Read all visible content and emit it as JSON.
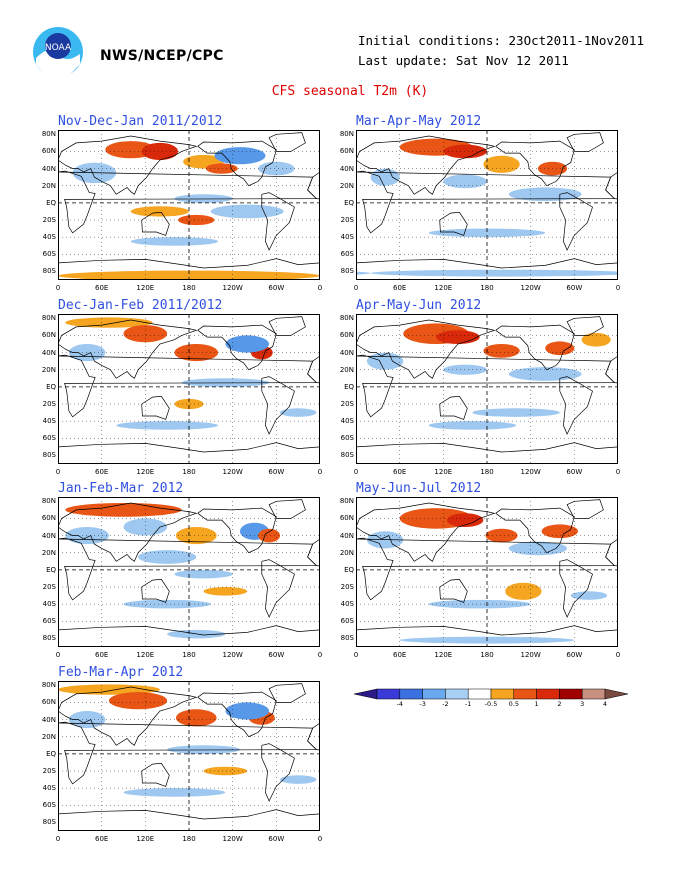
{
  "header": {
    "org": "NWS/NCEP/CPC",
    "initial_conditions": "Initial conditions: 23Oct2011-1Nov2011",
    "last_update": "Last update: Sat Nov 12 2011",
    "plot_title": "CFS seasonal T2m (K)",
    "logo_label": "NOAA"
  },
  "colors": {
    "title_red": "#e00000",
    "season_blue": "#3050e0",
    "orange": "#f5a520",
    "red_orange": "#e85515",
    "red": "#d82a0a",
    "light_blue": "#9ec8f0",
    "blue": "#5898e8"
  },
  "lat_labels": [
    "80N",
    "60N",
    "40N",
    "20N",
    "EQ",
    "20S",
    "40S",
    "60S",
    "80S"
  ],
  "lon_labels": [
    "0",
    "60E",
    "120E",
    "180",
    "120W",
    "60W",
    "0"
  ],
  "panels": [
    {
      "season": "Nov-Dec-Jan 2011/2012"
    },
    {
      "season": "Mar-Apr-May 2012"
    },
    {
      "season": "Dec-Jan-Feb 2011/2012"
    },
    {
      "season": "Apr-May-Jun 2012"
    },
    {
      "season": "Jan-Feb-Mar 2012"
    },
    {
      "season": "May-Jun-Jul 2012"
    },
    {
      "season": "Feb-Mar-Apr 2012"
    }
  ],
  "colorbar": {
    "ticks": [
      "-4",
      "-3",
      "-2",
      "-1",
      "-0.5",
      "0.5",
      "1",
      "2",
      "3",
      "4"
    ],
    "colors": [
      "#2a1a8a",
      "#3a3ad8",
      "#3a70e0",
      "#6aa8f0",
      "#a8d0f5",
      "#ffffff",
      "#f5a520",
      "#e85515",
      "#d82a0a",
      "#a00000",
      "#c89080",
      "#7a4a40"
    ]
  }
}
